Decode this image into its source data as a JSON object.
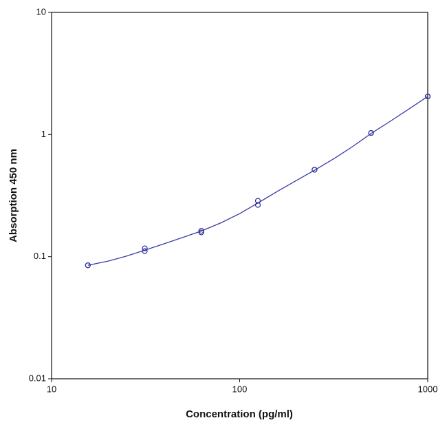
{
  "chart_data": {
    "type": "scatter",
    "x_label": "Concentration (pg/ml)",
    "y_label": "Absorption 450 nm",
    "xscale": "log",
    "yscale": "log",
    "xlim": [
      10,
      1000
    ],
    "ylim": [
      0.01,
      10
    ],
    "xticks": [
      10,
      100,
      1000
    ],
    "yticks": [
      0.01,
      0.1,
      1,
      10
    ],
    "x": [
      15.6,
      31.3,
      62.5,
      125,
      250,
      500,
      1000
    ],
    "series": [
      {
        "color": "#2e2e9c",
        "values": [
          0.085,
          0.117,
          0.163,
          0.287,
          0.515,
          1.03,
          2.05
        ]
      },
      {
        "color": "#2e2e9c",
        "values": [
          0.085,
          0.111,
          0.158,
          0.265,
          0.515,
          1.03,
          2.05
        ]
      }
    ],
    "curve": {
      "color": "#3a3aa8",
      "x": [
        15.6,
        20,
        25,
        31.3,
        40,
        50,
        62.5,
        80,
        100,
        125,
        160,
        200,
        250,
        320,
        400,
        500,
        640,
        800,
        1000
      ],
      "values": [
        0.085,
        0.092,
        0.101,
        0.113,
        0.128,
        0.144,
        0.162,
        0.19,
        0.225,
        0.275,
        0.345,
        0.42,
        0.51,
        0.64,
        0.8,
        1.02,
        1.3,
        1.63,
        2.05
      ]
    }
  }
}
